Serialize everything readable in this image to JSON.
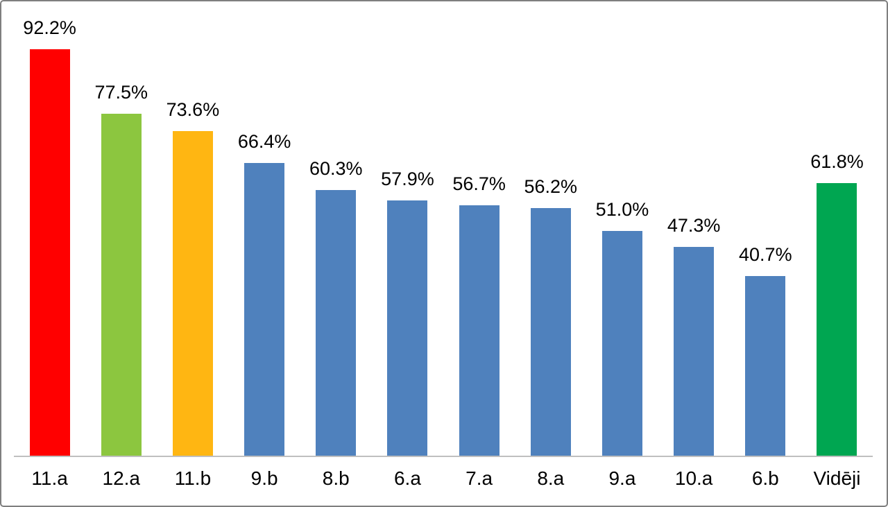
{
  "chart_data": {
    "type": "bar",
    "title": "",
    "xlabel": "",
    "ylabel": "",
    "categories": [
      "11.a",
      "12.a",
      "11.b",
      "9.b",
      "8.b",
      "6.a",
      "7.a",
      "8.a",
      "9.a",
      "10.a",
      "6.b",
      "Vidēji"
    ],
    "values": [
      92.2,
      77.5,
      73.6,
      66.4,
      60.3,
      57.9,
      56.7,
      56.2,
      51.0,
      47.3,
      40.7,
      61.8
    ],
    "value_labels": [
      "92.2%",
      "77.5%",
      "73.6%",
      "66.4%",
      "60.3%",
      "57.9%",
      "56.7%",
      "56.2%",
      "51.0%",
      "47.3%",
      "40.7%",
      "61.8%"
    ],
    "bar_colors": [
      "#FF0000",
      "#8CC63F",
      "#FFB612",
      "#4F81BD",
      "#4F81BD",
      "#4F81BD",
      "#4F81BD",
      "#4F81BD",
      "#4F81BD",
      "#4F81BD",
      "#4F81BD",
      "#00A651"
    ],
    "ylim": [
      0,
      103
    ],
    "grid": false,
    "legend": false,
    "data_labels": true,
    "colors": {
      "axis_line": "#BFBFBF",
      "frame_border": "#7F7F7F",
      "label_text": "#000000",
      "background": "#FFFFFF"
    }
  }
}
